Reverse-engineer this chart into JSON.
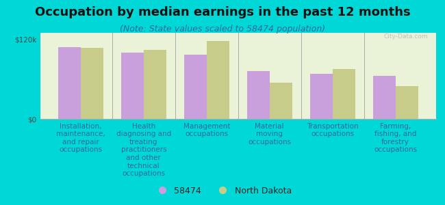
{
  "title": "Occupation by median earnings in the past 12 months",
  "subtitle": "(Note: State values scaled to 58474 population)",
  "categories": [
    "Installation,\nmaintenance,\nand repair\noccupations",
    "Health\ndiagnosing and\ntreating\npractitioners\nand other\ntechnical\noccupations",
    "Management\noccupations",
    "Material\nmoving\noccupations",
    "Transportation\noccupations",
    "Farming,\nfishing, and\nforestry\noccupations"
  ],
  "values_58474": [
    108000,
    100000,
    97000,
    72000,
    68000,
    65000
  ],
  "values_nd": [
    107000,
    104000,
    118000,
    55000,
    75000,
    50000
  ],
  "color_58474": "#c9a0dc",
  "color_nd": "#c8cc8a",
  "legend_labels": [
    "58474",
    "North Dakota"
  ],
  "ylim": [
    0,
    130000
  ],
  "yticks": [
    0,
    120000
  ],
  "ytick_labels": [
    "$0",
    "$120k"
  ],
  "background_outer": "#00d8d8",
  "background_inner": "#eaf2d8",
  "watermark": "City-Data.com",
  "title_fontsize": 13,
  "subtitle_fontsize": 9,
  "tick_label_fontsize": 7.5,
  "legend_fontsize": 9
}
